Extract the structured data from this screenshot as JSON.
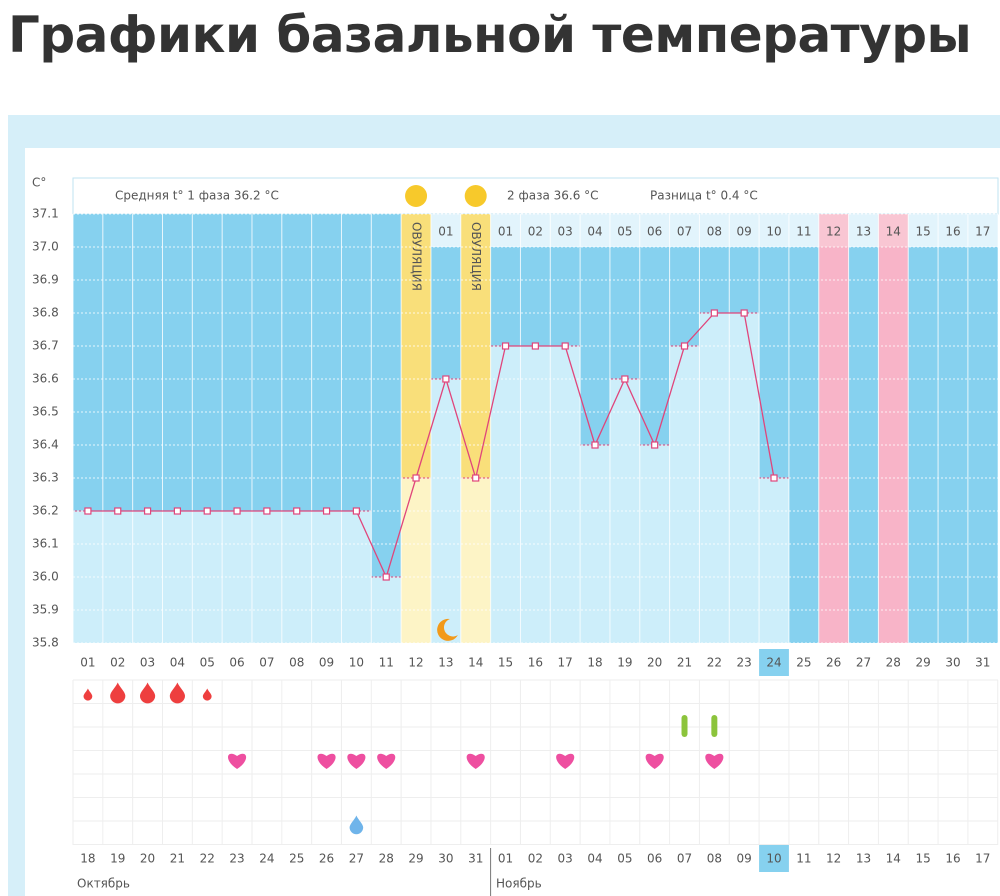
{
  "heading": "Графики базальной температуры",
  "chart_data": {
    "type": "line",
    "unit_label": "C°",
    "ylim": [
      35.8,
      37.1
    ],
    "yticks": [
      35.8,
      35.9,
      {
        "value": 36.0,
        "label": "36.0"
      },
      36.1,
      36.2,
      36.3,
      36.4,
      36.5,
      36.6,
      36.7,
      36.8,
      36.9,
      {
        "value": 37.0,
        "label": "37.0"
      },
      37.1
    ],
    "grid": true,
    "color": "#e0457b",
    "categories": [
      "01",
      "02",
      "03",
      "04",
      "05",
      "06",
      "07",
      "08",
      "09",
      "10",
      "11",
      "12",
      "13",
      "14",
      "15",
      "16",
      "17",
      "18",
      "19",
      "20",
      "21",
      "22",
      "23",
      "24",
      "25",
      "26",
      "27",
      "28",
      "29",
      "30",
      "31"
    ],
    "values": [
      36.2,
      36.2,
      36.2,
      36.2,
      36.2,
      36.2,
      36.2,
      36.2,
      36.2,
      36.2,
      36.0,
      36.3,
      36.6,
      36.3,
      36.7,
      36.7,
      36.7,
      36.4,
      36.6,
      36.4,
      36.7,
      36.8,
      36.8,
      36.3,
      null,
      null,
      null,
      null,
      null,
      null,
      null
    ],
    "phase1_label": "Средняя t° 1 фаза 36.2 °C",
    "phase2_label": "2 фаза 36.6 °C",
    "difference_label": "Разница t° 0.4 °C",
    "ovulation_label": "ОВУЛЯЦИЯ",
    "ovulation_days": [
      12,
      14
    ],
    "moon_days": [
      13
    ],
    "phase_day_labels": [
      null,
      null,
      null,
      null,
      null,
      null,
      null,
      null,
      null,
      null,
      null,
      null,
      "01",
      null,
      "01",
      "02",
      "03",
      "04",
      "05",
      "06",
      "07",
      "08",
      "09",
      "10",
      "11",
      "12",
      "13",
      "14",
      "15",
      "16",
      "17"
    ],
    "predicted_period_days": [
      26,
      28
    ],
    "today_day": 24,
    "light_bleeding_days": [
      1,
      5
    ],
    "heavy_bleeding_days": [
      2,
      3,
      4
    ],
    "green_marker_days": [
      21,
      22
    ],
    "heart_days": [
      6,
      9,
      10,
      11,
      14,
      17,
      20,
      22
    ],
    "blue_drop_days": [
      10
    ],
    "dates": [
      "18",
      "19",
      "20",
      "21",
      "22",
      "23",
      "24",
      "25",
      "26",
      "27",
      "28",
      "29",
      "30",
      "31",
      "01",
      "02",
      "03",
      "04",
      "05",
      "06",
      "07",
      "08",
      "09",
      "10",
      "11",
      "12",
      "13",
      "14",
      "15",
      "16",
      "17"
    ],
    "red_date_indices": [
      1,
      2,
      8,
      9,
      15,
      16,
      22,
      29,
      30
    ],
    "months": [
      "Октябрь",
      "Ноябрь"
    ]
  }
}
